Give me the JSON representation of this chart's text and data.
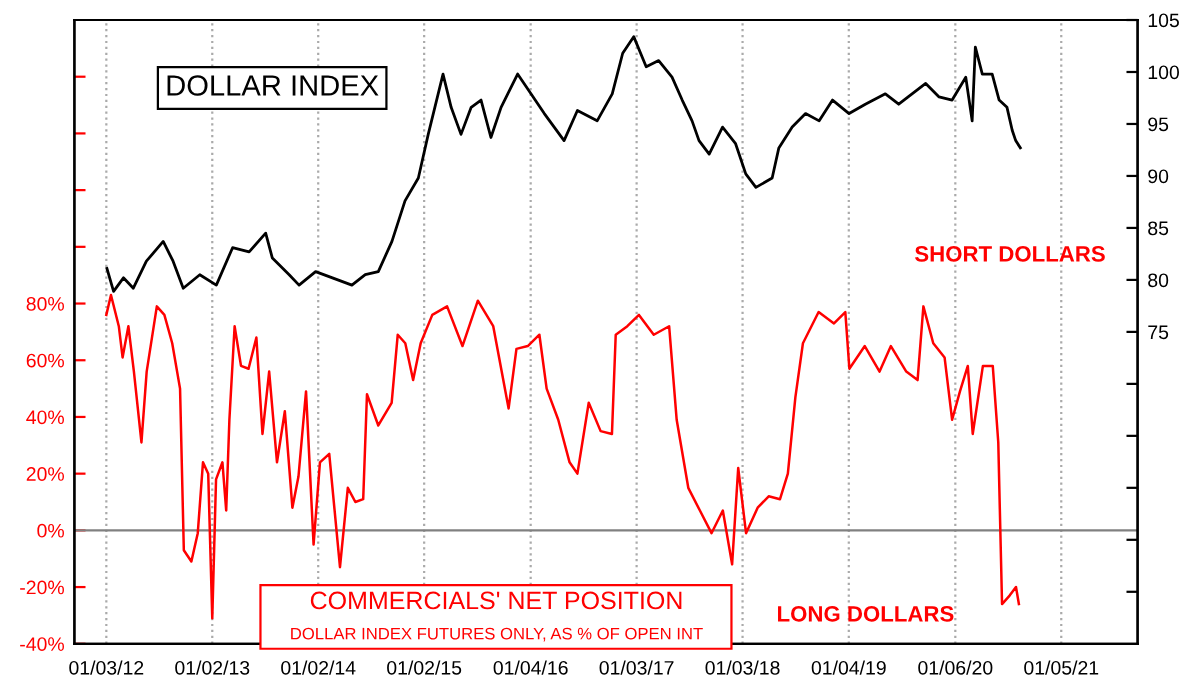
{
  "chart_data": {
    "type": "line",
    "annotations": [
      "SHORT DOLLARS",
      "LONG DOLLARS",
      "DOLLAR INDEX FUTURES ONLY, AS % OF OPEN INT"
    ],
    "xlim": [
      "2011-09-15",
      "2021-09-25"
    ],
    "xticks": [
      {
        "value": "2012-01-03",
        "label": "01/03/12"
      },
      {
        "value": "2013-01-02",
        "label": "01/02/13"
      },
      {
        "value": "2014-01-02",
        "label": "01/02/14"
      },
      {
        "value": "2015-01-02",
        "label": "01/02/15"
      },
      {
        "value": "2016-01-04",
        "label": "01/04/16"
      },
      {
        "value": "2017-01-03",
        "label": "01/03/17"
      },
      {
        "value": "2018-01-03",
        "label": "01/03/18"
      },
      {
        "value": "2019-01-04",
        "label": "01/04/19"
      },
      {
        "value": "2020-01-06",
        "label": "01/06/20"
      },
      {
        "value": "2021-01-05",
        "label": "01/05/21"
      }
    ],
    "ylim": [
      -40,
      180
    ],
    "yticks": [
      {
        "value": -40,
        "label": "-40%"
      },
      {
        "value": -20,
        "label": "-20%"
      },
      {
        "value": 0,
        "label": "0%"
      },
      {
        "value": 20,
        "label": "20%"
      },
      {
        "value": 40,
        "label": "40%"
      },
      {
        "value": 60,
        "label": "60%"
      },
      {
        "value": 80,
        "label": "80%"
      },
      {
        "value": 100,
        "label": null
      },
      {
        "value": 120,
        "label": null
      },
      {
        "value": 140,
        "label": null
      },
      {
        "value": 160,
        "label": null
      }
    ],
    "y2lim": [
      45,
      105
    ],
    "y2ticks": [
      {
        "value": 50,
        "label": null
      },
      {
        "value": 55,
        "label": null
      },
      {
        "value": 60,
        "label": null
      },
      {
        "value": 65,
        "label": null
      },
      {
        "value": 70,
        "label": null
      },
      75,
      80,
      85,
      90,
      95,
      100,
      105
    ],
    "grid": "x",
    "ref_lines": [
      {
        "axis": "y",
        "value": 0,
        "color": "#808080"
      }
    ],
    "series": [
      {
        "name": "COMMERCIALS' NET POSITION",
        "color": "#ff0000",
        "x": [
          "2012-01-03",
          "2012-01-19",
          "2012-02-15",
          "2012-02-28",
          "2012-03-19",
          "2012-04-07",
          "2012-05-03",
          "2012-05-21",
          "2012-06-25",
          "2012-07-21",
          "2012-08-17",
          "2012-09-13",
          "2012-09-26",
          "2012-10-22",
          "2012-11-13",
          "2012-12-01",
          "2012-12-19",
          "2013-01-02",
          "2013-01-15",
          "2013-02-06",
          "2013-02-19",
          "2013-03-02",
          "2013-03-20",
          "2013-04-11",
          "2013-05-07",
          "2013-06-03",
          "2013-06-24",
          "2013-07-17",
          "2013-08-13",
          "2013-09-09",
          "2013-10-05",
          "2013-10-26",
          "2013-11-21",
          "2013-12-17",
          "2014-01-08",
          "2014-02-09",
          "2014-03-18",
          "2014-04-14",
          "2014-05-10",
          "2014-06-06",
          "2014-06-19",
          "2014-07-28",
          "2014-09-12",
          "2014-10-03",
          "2014-10-29",
          "2014-11-25",
          "2014-12-21",
          "2015-01-30",
          "2015-03-22",
          "2015-05-14",
          "2015-07-06",
          "2015-08-28",
          "2015-10-20",
          "2015-11-16",
          "2015-12-25",
          "2016-02-03",
          "2016-02-28",
          "2016-04-08",
          "2016-05-17",
          "2016-06-13",
          "2016-07-22",
          "2016-09-01",
          "2016-10-10",
          "2016-10-23",
          "2016-12-02",
          "2017-01-11",
          "2017-03-03",
          "2017-04-25",
          "2017-05-21",
          "2017-06-30",
          "2017-08-09",
          "2017-09-18",
          "2017-10-27",
          "2017-11-28",
          "2017-12-19",
          "2018-01-15",
          "2018-02-24",
          "2018-04-03",
          "2018-05-12",
          "2018-06-08",
          "2018-07-04",
          "2018-07-30",
          "2018-09-22",
          "2018-11-14",
          "2018-12-23",
          "2019-01-06",
          "2019-02-28",
          "2019-04-20",
          "2019-05-29",
          "2019-07-21",
          "2019-08-29",
          "2019-09-18",
          "2019-10-22",
          "2019-11-30",
          "2019-12-26",
          "2020-01-22",
          "2020-02-18",
          "2020-03-06",
          "2020-04-10",
          "2020-05-14",
          "2020-06-02",
          "2020-06-15",
          "2020-07-11",
          "2020-08-02",
          "2020-08-12"
        ],
        "values": [
          76,
          83,
          72,
          61,
          72,
          56,
          31,
          56,
          79,
          76,
          66,
          50,
          -7,
          -11,
          -1,
          24,
          20,
          -31,
          18,
          24,
          7,
          39,
          72,
          58,
          57,
          68,
          34,
          56,
          24,
          42,
          8,
          19,
          49,
          -5,
          24,
          27,
          -13,
          15,
          10,
          11,
          48,
          37,
          45,
          69,
          66,
          53,
          66,
          76,
          79,
          65,
          81,
          72,
          43,
          64,
          65,
          69,
          50,
          39,
          24,
          20,
          45,
          35,
          34,
          69,
          72,
          76,
          69,
          72,
          39,
          15,
          7,
          -1,
          7,
          -12,
          22,
          -1,
          8,
          12,
          11,
          20,
          47,
          66,
          77,
          73,
          77,
          57,
          65,
          56,
          65,
          56,
          53,
          79,
          66,
          61,
          39,
          49,
          58,
          34,
          58,
          58,
          31,
          -26,
          -23,
          -20,
          -26
        ]
      },
      {
        "name": "DOLLAR INDEX",
        "color": "#000000",
        "axis": "y2",
        "x": [
          "2012-01-05",
          "2012-01-28",
          "2012-03-02",
          "2012-04-05",
          "2012-05-20",
          "2012-07-17",
          "2012-08-20",
          "2012-09-24",
          "2012-11-20",
          "2013-01-16",
          "2013-03-13",
          "2013-05-09",
          "2013-07-05",
          "2013-07-28",
          "2013-09-24",
          "2013-10-28",
          "2013-12-24",
          "2014-02-20",
          "2014-04-28",
          "2014-06-13",
          "2014-07-28",
          "2014-09-13",
          "2014-10-28",
          "2014-12-13",
          "2015-01-16",
          "2015-03-08",
          "2015-04-05",
          "2015-05-09",
          "2015-06-13",
          "2015-07-17",
          "2015-08-20",
          "2015-09-24",
          "2015-11-20",
          "2016-01-05",
          "2016-02-20",
          "2016-04-28",
          "2016-06-13",
          "2016-08-20",
          "2016-10-11",
          "2016-11-16",
          "2016-12-24",
          "2017-02-05",
          "2017-03-20",
          "2017-05-05",
          "2017-06-09",
          "2017-07-13",
          "2017-08-06",
          "2017-09-10",
          "2017-10-26",
          "2017-12-10",
          "2018-01-14",
          "2018-02-18",
          "2018-04-15",
          "2018-05-08",
          "2018-06-23",
          "2018-08-08",
          "2018-09-24",
          "2018-11-09",
          "2019-01-05",
          "2019-03-02",
          "2019-05-10",
          "2019-06-25",
          "2019-09-26",
          "2019-11-11",
          "2019-12-26",
          "2020-02-11",
          "2020-03-04",
          "2020-03-15",
          "2020-04-08",
          "2020-05-12",
          "2020-06-05",
          "2020-07-02",
          "2020-07-20",
          "2020-08-01",
          "2020-08-17"
        ],
        "values": [
          81.1,
          78.9,
          80.2,
          79.2,
          81.8,
          83.7,
          81.8,
          79.2,
          80.5,
          79.5,
          83.1,
          82.7,
          84.5,
          82.1,
          80.5,
          79.5,
          80.8,
          80.2,
          79.5,
          80.5,
          80.8,
          83.7,
          87.6,
          89.8,
          94.0,
          99.8,
          96.6,
          94.0,
          96.6,
          97.3,
          93.7,
          96.6,
          99.8,
          97.9,
          96.0,
          93.4,
          96.3,
          95.3,
          97.9,
          101.8,
          103.4,
          100.5,
          101.1,
          99.5,
          97.3,
          95.3,
          93.4,
          92.1,
          94.7,
          93.1,
          90.2,
          88.9,
          89.8,
          92.7,
          94.7,
          96.0,
          95.3,
          97.3,
          96.0,
          96.9,
          97.9,
          96.9,
          98.9,
          97.6,
          97.3,
          99.5,
          95.3,
          102.4,
          99.8,
          99.8,
          97.3,
          96.6,
          94.4,
          93.4,
          92.7
        ]
      }
    ]
  }
}
